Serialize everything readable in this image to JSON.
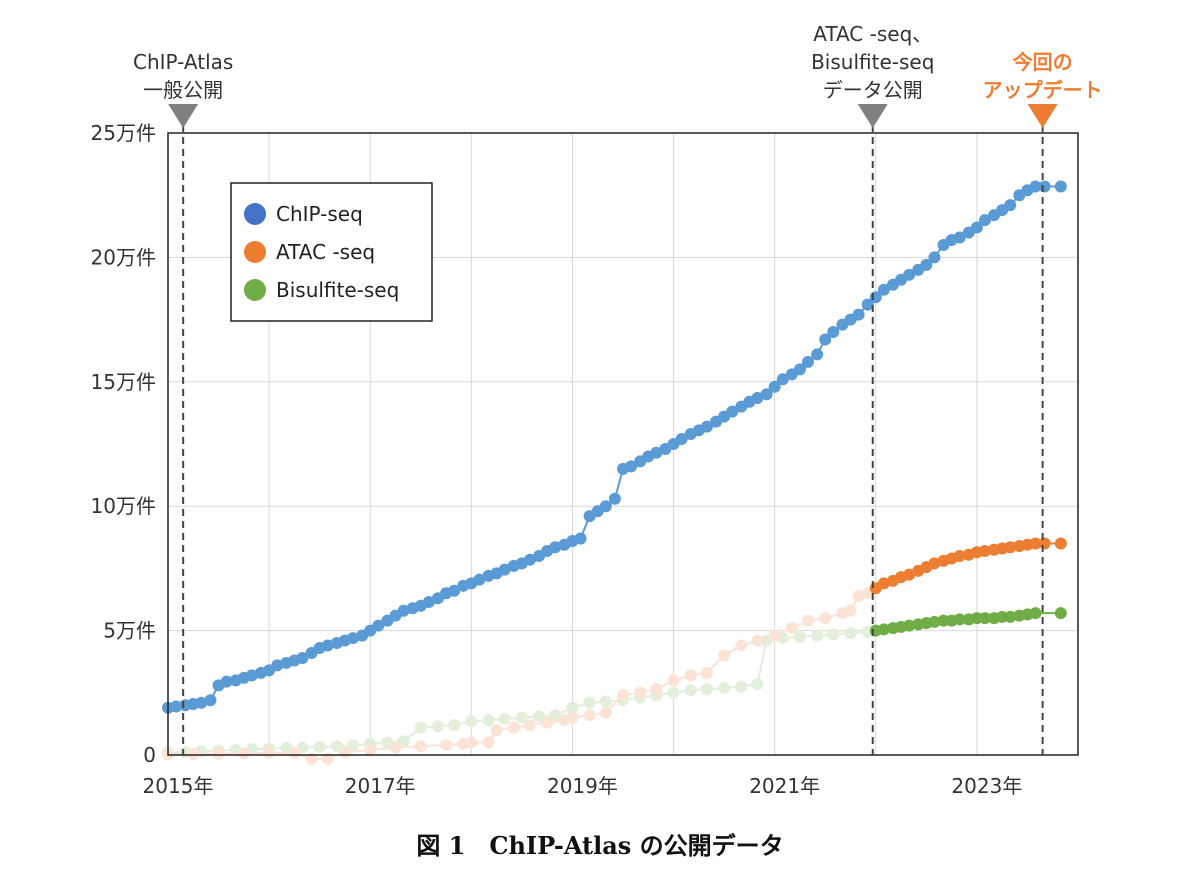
{
  "caption": "図 1　ChIP-Atlas の公開データ",
  "annotations": [
    {
      "lines": [
        "ChIP-Atlas",
        "一般公開"
      ],
      "date": 2015.15,
      "color": "#808080",
      "text_color": "#333333"
    },
    {
      "lines": [
        "ATAC -seq、",
        "Bisulfite-seq",
        "データ公開"
      ],
      "date": 2021.97,
      "color": "#808080",
      "text_color": "#333333"
    },
    {
      "lines": [
        "今回の",
        "アップデート"
      ],
      "date": 2023.65,
      "color": "#ed7d31",
      "text_color": "#ed7d31"
    }
  ],
  "chart_data": {
    "type": "line",
    "title": "",
    "xlabel": "",
    "ylabel": "",
    "xlim": [
      2015.0,
      2024.0
    ],
    "ylim": [
      0,
      250000
    ],
    "x_tick_labels": [
      {
        "value": 2015,
        "label": "2015年"
      },
      {
        "value": 2017,
        "label": "2017年"
      },
      {
        "value": 2019,
        "label": "2019年"
      },
      {
        "value": 2021,
        "label": "2021年"
      },
      {
        "value": 2023,
        "label": "2023年"
      }
    ],
    "x_gridlines": [
      2015,
      2016,
      2017,
      2018,
      2019,
      2020,
      2021,
      2022,
      2023
    ],
    "y_ticks": [
      {
        "value": 0,
        "label": "0"
      },
      {
        "value": 50000,
        "label": "5万件"
      },
      {
        "value": 100000,
        "label": "10万件"
      },
      {
        "value": 150000,
        "label": "15万件"
      },
      {
        "value": 200000,
        "label": "20万件"
      },
      {
        "value": 250000,
        "label": "25万件"
      }
    ],
    "grid": true,
    "legend_position": "top-left",
    "legend": [
      {
        "name": "ChIP-seq",
        "color": "#4472c4"
      },
      {
        "name": "ATAC -seq",
        "color": "#ed7d31"
      },
      {
        "name": "Bisulfite-seq",
        "color": "#70ad47"
      }
    ],
    "series": [
      {
        "name": "ChIP-seq",
        "color": "#5b9bd5",
        "faded_before": null,
        "points": [
          [
            2015.0,
            19000
          ],
          [
            2015.08,
            19500
          ],
          [
            2015.17,
            20000
          ],
          [
            2015.25,
            20500
          ],
          [
            2015.33,
            21000
          ],
          [
            2015.42,
            22000
          ],
          [
            2015.5,
            28000
          ],
          [
            2015.58,
            29500
          ],
          [
            2015.67,
            30000
          ],
          [
            2015.75,
            31000
          ],
          [
            2015.83,
            32000
          ],
          [
            2015.92,
            33000
          ],
          [
            2016.0,
            34000
          ],
          [
            2016.08,
            36000
          ],
          [
            2016.17,
            37000
          ],
          [
            2016.25,
            38000
          ],
          [
            2016.33,
            39000
          ],
          [
            2016.42,
            41000
          ],
          [
            2016.5,
            43000
          ],
          [
            2016.58,
            44000
          ],
          [
            2016.67,
            45000
          ],
          [
            2016.75,
            46000
          ],
          [
            2016.83,
            47000
          ],
          [
            2016.92,
            48000
          ],
          [
            2017.0,
            50000
          ],
          [
            2017.08,
            52000
          ],
          [
            2017.17,
            54000
          ],
          [
            2017.25,
            56000
          ],
          [
            2017.33,
            58000
          ],
          [
            2017.42,
            59000
          ],
          [
            2017.5,
            60000
          ],
          [
            2017.58,
            61500
          ],
          [
            2017.67,
            63000
          ],
          [
            2017.75,
            65000
          ],
          [
            2017.83,
            66000
          ],
          [
            2017.92,
            68000
          ],
          [
            2018.0,
            69000
          ],
          [
            2018.08,
            70500
          ],
          [
            2018.17,
            72000
          ],
          [
            2018.25,
            73000
          ],
          [
            2018.33,
            74500
          ],
          [
            2018.42,
            76000
          ],
          [
            2018.5,
            77000
          ],
          [
            2018.58,
            78500
          ],
          [
            2018.67,
            80000
          ],
          [
            2018.75,
            82000
          ],
          [
            2018.83,
            83500
          ],
          [
            2018.92,
            84500
          ],
          [
            2019.0,
            86000
          ],
          [
            2019.08,
            87000
          ],
          [
            2019.17,
            96000
          ],
          [
            2019.25,
            98000
          ],
          [
            2019.33,
            100000
          ],
          [
            2019.42,
            103000
          ],
          [
            2019.5,
            115000
          ],
          [
            2019.58,
            116000
          ],
          [
            2019.67,
            118000
          ],
          [
            2019.75,
            120000
          ],
          [
            2019.83,
            121500
          ],
          [
            2019.92,
            123000
          ],
          [
            2020.0,
            125000
          ],
          [
            2020.08,
            127000
          ],
          [
            2020.17,
            129000
          ],
          [
            2020.25,
            130500
          ],
          [
            2020.33,
            132000
          ],
          [
            2020.42,
            134000
          ],
          [
            2020.5,
            136000
          ],
          [
            2020.58,
            138000
          ],
          [
            2020.67,
            140000
          ],
          [
            2020.75,
            142000
          ],
          [
            2020.83,
            143500
          ],
          [
            2020.92,
            145000
          ],
          [
            2021.0,
            148000
          ],
          [
            2021.08,
            151000
          ],
          [
            2021.17,
            153000
          ],
          [
            2021.25,
            155000
          ],
          [
            2021.33,
            158000
          ],
          [
            2021.42,
            161000
          ],
          [
            2021.5,
            167000
          ],
          [
            2021.58,
            170000
          ],
          [
            2021.67,
            173000
          ],
          [
            2021.75,
            175000
          ],
          [
            2021.83,
            177000
          ],
          [
            2021.92,
            181000
          ],
          [
            2022.0,
            184000
          ],
          [
            2022.08,
            187000
          ],
          [
            2022.17,
            189000
          ],
          [
            2022.25,
            191000
          ],
          [
            2022.33,
            193000
          ],
          [
            2022.42,
            195000
          ],
          [
            2022.5,
            197000
          ],
          [
            2022.58,
            200000
          ],
          [
            2022.67,
            205000
          ],
          [
            2022.75,
            207000
          ],
          [
            2022.83,
            208000
          ],
          [
            2022.92,
            210000
          ],
          [
            2023.0,
            212000
          ],
          [
            2023.08,
            215000
          ],
          [
            2023.17,
            217000
          ],
          [
            2023.25,
            219000
          ],
          [
            2023.33,
            221000
          ],
          [
            2023.42,
            225000
          ],
          [
            2023.5,
            227000
          ],
          [
            2023.58,
            228500
          ],
          [
            2023.67,
            228500
          ],
          [
            2023.83,
            228500
          ]
        ]
      },
      {
        "name": "ATAC -seq",
        "color": "#ed7d31",
        "faded_color": "#fbe3d6",
        "faded_before": 2022.0,
        "points": [
          [
            2015.0,
            300
          ],
          [
            2015.25,
            400
          ],
          [
            2015.5,
            500
          ],
          [
            2015.75,
            600
          ],
          [
            2016.0,
            800
          ],
          [
            2016.25,
            900
          ],
          [
            2016.42,
            -1500
          ],
          [
            2016.58,
            -1500
          ],
          [
            2016.75,
            1000
          ],
          [
            2017.0,
            2000
          ],
          [
            2017.25,
            3000
          ],
          [
            2017.5,
            3500
          ],
          [
            2017.75,
            4000
          ],
          [
            2017.92,
            4500
          ],
          [
            2018.0,
            5000
          ],
          [
            2018.17,
            5000
          ],
          [
            2018.25,
            10000
          ],
          [
            2018.42,
            11000
          ],
          [
            2018.58,
            12000
          ],
          [
            2018.75,
            13000
          ],
          [
            2018.92,
            14000
          ],
          [
            2019.0,
            15000
          ],
          [
            2019.17,
            16000
          ],
          [
            2019.33,
            17000
          ],
          [
            2019.5,
            24000
          ],
          [
            2019.67,
            25000
          ],
          [
            2019.83,
            26500
          ],
          [
            2020.0,
            30000
          ],
          [
            2020.17,
            32000
          ],
          [
            2020.33,
            33000
          ],
          [
            2020.5,
            40000
          ],
          [
            2020.67,
            44000
          ],
          [
            2020.83,
            46000
          ],
          [
            2021.0,
            48000
          ],
          [
            2021.17,
            51000
          ],
          [
            2021.33,
            54000
          ],
          [
            2021.5,
            55000
          ],
          [
            2021.67,
            57000
          ],
          [
            2021.75,
            58000
          ],
          [
            2021.83,
            64000
          ],
          [
            2021.92,
            65000
          ],
          [
            2022.0,
            67000
          ],
          [
            2022.08,
            69000
          ],
          [
            2022.17,
            70000
          ],
          [
            2022.25,
            71500
          ],
          [
            2022.33,
            72500
          ],
          [
            2022.42,
            74000
          ],
          [
            2022.5,
            75500
          ],
          [
            2022.58,
            77000
          ],
          [
            2022.67,
            78000
          ],
          [
            2022.75,
            79000
          ],
          [
            2022.83,
            80000
          ],
          [
            2022.92,
            80500
          ],
          [
            2023.0,
            81500
          ],
          [
            2023.08,
            82000
          ],
          [
            2023.17,
            82500
          ],
          [
            2023.25,
            83000
          ],
          [
            2023.33,
            83500
          ],
          [
            2023.42,
            84000
          ],
          [
            2023.5,
            84500
          ],
          [
            2023.58,
            85000
          ],
          [
            2023.67,
            85000
          ],
          [
            2023.83,
            85000
          ]
        ]
      },
      {
        "name": "Bisulfite-seq",
        "color": "#70ad47",
        "faded_color": "#e2efda",
        "faded_before": 2022.0,
        "points": [
          [
            2015.0,
            1000
          ],
          [
            2015.17,
            1200
          ],
          [
            2015.33,
            1500
          ],
          [
            2015.5,
            1800
          ],
          [
            2015.67,
            2000
          ],
          [
            2015.83,
            2300
          ],
          [
            2016.0,
            2500
          ],
          [
            2016.17,
            2800
          ],
          [
            2016.33,
            3000
          ],
          [
            2016.5,
            3300
          ],
          [
            2016.67,
            3500
          ],
          [
            2016.83,
            3800
          ],
          [
            2017.0,
            4500
          ],
          [
            2017.17,
            5000
          ],
          [
            2017.33,
            5500
          ],
          [
            2017.5,
            11000
          ],
          [
            2017.67,
            11500
          ],
          [
            2017.83,
            12000
          ],
          [
            2018.0,
            13500
          ],
          [
            2018.17,
            14000
          ],
          [
            2018.33,
            14500
          ],
          [
            2018.5,
            15000
          ],
          [
            2018.67,
            15500
          ],
          [
            2018.83,
            16000
          ],
          [
            2019.0,
            19000
          ],
          [
            2019.17,
            21000
          ],
          [
            2019.33,
            21500
          ],
          [
            2019.5,
            22000
          ],
          [
            2019.67,
            23000
          ],
          [
            2019.83,
            24000
          ],
          [
            2020.0,
            25000
          ],
          [
            2020.17,
            26000
          ],
          [
            2020.33,
            26500
          ],
          [
            2020.5,
            27000
          ],
          [
            2020.67,
            27500
          ],
          [
            2020.83,
            28500
          ],
          [
            2020.92,
            46000
          ],
          [
            2021.08,
            47000
          ],
          [
            2021.25,
            47500
          ],
          [
            2021.42,
            48000
          ],
          [
            2021.58,
            48500
          ],
          [
            2021.75,
            49000
          ],
          [
            2021.92,
            49500
          ],
          [
            2022.0,
            50000
          ],
          [
            2022.08,
            50500
          ],
          [
            2022.17,
            51000
          ],
          [
            2022.25,
            51500
          ],
          [
            2022.33,
            52000
          ],
          [
            2022.42,
            52500
          ],
          [
            2022.5,
            53000
          ],
          [
            2022.58,
            53500
          ],
          [
            2022.67,
            54000
          ],
          [
            2022.75,
            54000
          ],
          [
            2022.83,
            54500
          ],
          [
            2022.92,
            54500
          ],
          [
            2023.0,
            55000
          ],
          [
            2023.08,
            55000
          ],
          [
            2023.17,
            55000
          ],
          [
            2023.25,
            55500
          ],
          [
            2023.33,
            55500
          ],
          [
            2023.42,
            56000
          ],
          [
            2023.5,
            56500
          ],
          [
            2023.58,
            57000
          ],
          [
            2023.83,
            57000
          ]
        ]
      }
    ]
  }
}
